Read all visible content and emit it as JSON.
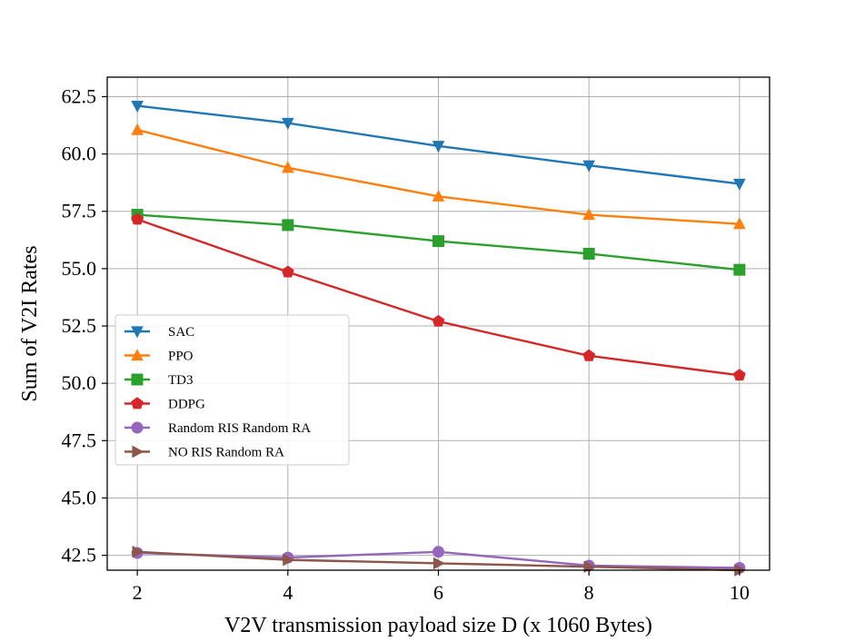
{
  "chart_data": {
    "type": "line",
    "title": "",
    "xlabel": "V2V transmission payload size D (x 1060 Bytes)",
    "ylabel": "Sum of V2I Rates",
    "x": [
      2,
      4,
      6,
      8,
      10
    ],
    "xlim": [
      1.6,
      10.4
    ],
    "ylim": [
      41.85,
      63.35
    ],
    "xticks": [
      2,
      4,
      6,
      8,
      10
    ],
    "xtick_labels": [
      "2",
      "4",
      "6",
      "8",
      "10"
    ],
    "yticks": [
      42.5,
      45.0,
      47.5,
      50.0,
      52.5,
      55.0,
      57.5,
      60.0,
      62.5
    ],
    "ytick_labels": [
      "42.5",
      "45.0",
      "47.5",
      "50.0",
      "52.5",
      "55.0",
      "57.5",
      "60.0",
      "62.5"
    ],
    "grid": true,
    "legend_position": "center-left",
    "series": [
      {
        "name": "SAC",
        "color": "#1f77b4",
        "marker": "triangle-down",
        "values": [
          62.1,
          61.35,
          60.35,
          59.5,
          58.7
        ]
      },
      {
        "name": "PPO",
        "color": "#ff7f0e",
        "marker": "triangle-up",
        "values": [
          61.05,
          59.4,
          58.15,
          57.35,
          56.95
        ]
      },
      {
        "name": "TD3",
        "color": "#2ca02c",
        "marker": "square",
        "values": [
          57.35,
          56.9,
          56.2,
          55.65,
          54.95
        ]
      },
      {
        "name": "DDPG",
        "color": "#d62728",
        "marker": "pentagon",
        "values": [
          57.15,
          54.85,
          52.7,
          51.2,
          50.35
        ]
      },
      {
        "name": "Random RIS Random RA",
        "color": "#9467bd",
        "marker": "circle",
        "values": [
          42.6,
          42.4,
          42.65,
          42.05,
          41.95
        ]
      },
      {
        "name": "NO RIS Random RA",
        "color": "#8c564b",
        "marker": "triangle-right",
        "values": [
          42.65,
          42.3,
          42.15,
          42.0,
          41.85
        ]
      }
    ]
  }
}
